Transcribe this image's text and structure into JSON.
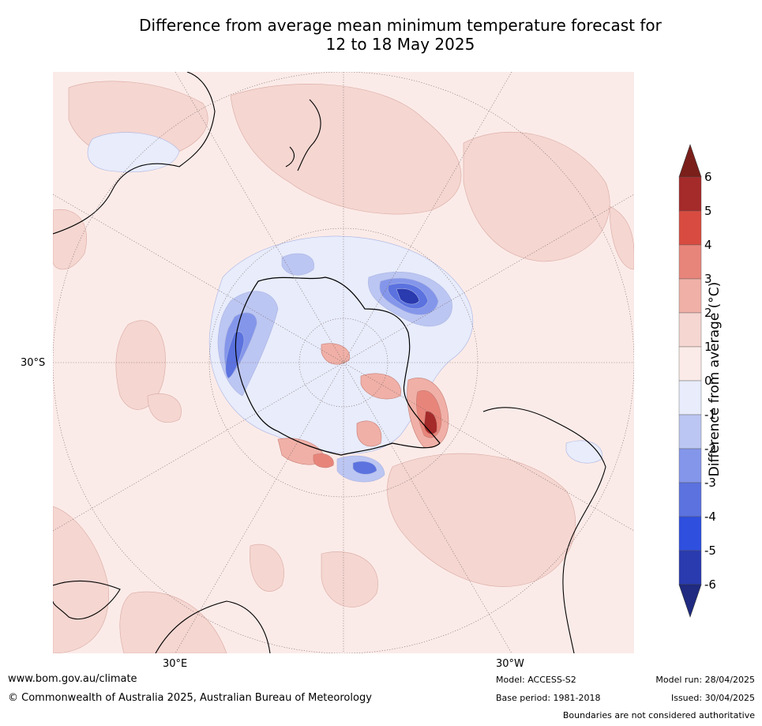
{
  "title_line1": "Difference from average mean minimum temperature forecast for",
  "title_line2": "12 to 18 May 2025",
  "map": {
    "projection": "south-polar-stereographic",
    "lat_labels": [
      "30°S"
    ],
    "lon_labels": [
      "30°E",
      "30°W"
    ],
    "land_base_color": "#fbebe8",
    "coast_color": "#000000",
    "graticule_color": "#7a6a6a"
  },
  "colorbar": {
    "title": "Difference from average (",
    "title_unit": "°C)",
    "ticks": [
      "6",
      "5",
      "4",
      "3",
      "2",
      "1",
      "0",
      "-1",
      "-2",
      "-3",
      "-4",
      "-5",
      "-6"
    ],
    "colors_top_to_bottom": [
      "#a52a2a",
      "#d84b40",
      "#e8857b",
      "#f0b0a7",
      "#f5d6d1",
      "#fbebe8",
      "#e8ecfb",
      "#bcc6f2",
      "#8496ea",
      "#5b72df",
      "#2f4fdf",
      "#2a3aaf"
    ],
    "extend_top": "#7a1f1a",
    "extend_bottom": "#1f2a80"
  },
  "footer": {
    "website": "www.bom.gov.au/climate",
    "copyright": "© Commonwealth of Australia 2025, Australian Bureau of Meteorology",
    "model": "Model: ACCESS-S2",
    "base_period": "Base period: 1981-2018",
    "model_run": "Model run: 28/04/2025",
    "issued": "Issued: 30/04/2025",
    "disclaimer": "Boundaries are not considered authoritative"
  }
}
